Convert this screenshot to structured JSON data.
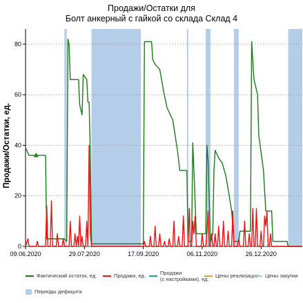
{
  "chart_data": {
    "type": "line",
    "title": "Продажи/Остатки для",
    "subtitle": "Болт анкерный с гайкой со склада Склад 4",
    "ylabel": "Продажи/Остатки, ед.",
    "xlabel": "",
    "ylim": [
      0,
      86
    ],
    "yticks": [
      0,
      20,
      40,
      60,
      80
    ],
    "xlim": [
      "2020-06-09",
      "2021-01-30"
    ],
    "x_tick_labels": [
      "09.06.2020",
      "29.07.2020",
      "17.09.2020",
      "06.11.2020",
      "26.12.2020"
    ],
    "x_tick_dates": [
      "2020-06-09",
      "2020-07-29",
      "2020-09-17",
      "2020-11-06",
      "2020-12-26"
    ],
    "grid": true,
    "legend_position": "bottom",
    "deficit_periods": [
      [
        "2020-07-12",
        "2020-07-14"
      ],
      [
        "2020-08-04",
        "2020-09-15"
      ],
      [
        "2020-10-24",
        "2020-10-25"
      ],
      [
        "2020-11-09",
        "2020-11-13"
      ],
      [
        "2020-12-03",
        "2020-12-07"
      ],
      [
        "2021-01-18",
        "2021-01-30"
      ]
    ],
    "series": [
      {
        "name": "Фактический остаток, ед.",
        "color": "#1a7a1a",
        "points": [
          [
            "2020-06-09",
            39
          ],
          [
            "2020-06-11",
            37
          ],
          [
            "2020-06-12",
            36
          ],
          [
            "2020-06-15",
            36
          ],
          [
            "2020-06-18",
            36
          ],
          [
            "2020-06-26",
            36
          ],
          [
            "2020-06-27",
            3
          ],
          [
            "2020-07-12",
            3
          ],
          [
            "2020-07-14",
            2
          ],
          [
            "2020-07-15",
            82
          ],
          [
            "2020-07-16",
            80
          ],
          [
            "2020-07-17",
            66
          ],
          [
            "2020-07-24",
            66
          ],
          [
            "2020-07-25",
            56
          ],
          [
            "2020-07-27",
            52
          ],
          [
            "2020-07-28",
            68
          ],
          [
            "2020-07-31",
            66
          ],
          [
            "2020-08-01",
            57
          ],
          [
            "2020-08-02",
            57
          ],
          [
            "2020-08-03",
            36
          ],
          [
            "2020-08-04",
            1
          ],
          [
            "2020-09-15",
            1
          ],
          [
            "2020-09-17",
            1
          ],
          [
            "2020-09-18",
            81
          ],
          [
            "2020-09-24",
            81
          ],
          [
            "2020-09-25",
            74
          ],
          [
            "2020-09-27",
            72
          ],
          [
            "2020-10-01",
            70
          ],
          [
            "2020-10-04",
            62
          ],
          [
            "2020-10-07",
            55
          ],
          [
            "2020-10-12",
            50
          ],
          [
            "2020-10-16",
            38
          ],
          [
            "2020-10-18",
            30
          ],
          [
            "2020-10-24",
            30
          ],
          [
            "2020-10-25",
            2
          ],
          [
            "2020-10-28",
            2
          ],
          [
            "2020-10-29",
            41
          ],
          [
            "2020-10-30",
            30
          ],
          [
            "2020-11-01",
            5
          ],
          [
            "2020-11-09",
            5
          ],
          [
            "2020-11-10",
            40
          ],
          [
            "2020-11-11",
            34
          ],
          [
            "2020-11-13",
            2
          ],
          [
            "2020-11-15",
            5
          ],
          [
            "2020-11-16",
            30
          ],
          [
            "2020-11-17",
            38
          ],
          [
            "2020-11-20",
            35
          ],
          [
            "2020-11-23",
            33
          ],
          [
            "2020-11-26",
            28
          ],
          [
            "2020-11-29",
            20
          ],
          [
            "2020-12-01",
            14
          ],
          [
            "2020-12-03",
            2
          ],
          [
            "2020-12-07",
            2
          ],
          [
            "2020-12-08",
            6
          ],
          [
            "2020-12-14",
            6
          ],
          [
            "2020-12-17",
            6
          ],
          [
            "2020-12-18",
            81
          ],
          [
            "2020-12-20",
            66
          ],
          [
            "2020-12-23",
            60
          ],
          [
            "2020-12-24",
            44
          ],
          [
            "2020-12-28",
            30
          ],
          [
            "2020-12-30",
            14
          ],
          [
            "2021-01-01",
            14
          ],
          [
            "2021-01-04",
            14
          ],
          [
            "2021-01-05",
            2
          ],
          [
            "2021-01-17",
            2
          ],
          [
            "2021-01-18",
            0
          ],
          [
            "2021-01-30",
            0
          ]
        ]
      },
      {
        "name": "Продажи, ед.",
        "color": "#ee1111",
        "points": [
          [
            "2020-06-09",
            0
          ],
          [
            "2020-06-11",
            3
          ],
          [
            "2020-06-12",
            0
          ],
          [
            "2020-06-18",
            0
          ],
          [
            "2020-06-19",
            2
          ],
          [
            "2020-06-20",
            0
          ],
          [
            "2020-06-26",
            0
          ],
          [
            "2020-06-27",
            16
          ],
          [
            "2020-06-28",
            0
          ],
          [
            "2020-06-30",
            0
          ],
          [
            "2020-07-01",
            18
          ],
          [
            "2020-07-02",
            0
          ],
          [
            "2020-07-05",
            0
          ],
          [
            "2020-07-06",
            5
          ],
          [
            "2020-07-07",
            0
          ],
          [
            "2020-07-10",
            0
          ],
          [
            "2020-07-11",
            3
          ],
          [
            "2020-07-12",
            0
          ],
          [
            "2020-07-16",
            0
          ],
          [
            "2020-07-17",
            10
          ],
          [
            "2020-07-18",
            0
          ],
          [
            "2020-07-20",
            0
          ],
          [
            "2020-07-21",
            5
          ],
          [
            "2020-07-22",
            0
          ],
          [
            "2020-07-23",
            4
          ],
          [
            "2020-07-24",
            0
          ],
          [
            "2020-07-25",
            12
          ],
          [
            "2020-07-26",
            0
          ],
          [
            "2020-07-27",
            4
          ],
          [
            "2020-07-28",
            0
          ],
          [
            "2020-07-30",
            0
          ],
          [
            "2020-07-31",
            10
          ],
          [
            "2020-08-01",
            0
          ],
          [
            "2020-08-02",
            40
          ],
          [
            "2020-08-03",
            5
          ],
          [
            "2020-08-04",
            0
          ],
          [
            "2020-09-17",
            0
          ],
          [
            "2020-09-18",
            2
          ],
          [
            "2020-09-19",
            0
          ],
          [
            "2020-09-22",
            0
          ],
          [
            "2020-09-23",
            4
          ],
          [
            "2020-09-24",
            0
          ],
          [
            "2020-09-26",
            0
          ],
          [
            "2020-09-27",
            8
          ],
          [
            "2020-09-28",
            0
          ],
          [
            "2020-09-30",
            0
          ],
          [
            "2020-10-01",
            5
          ],
          [
            "2020-10-02",
            0
          ],
          [
            "2020-10-04",
            0
          ],
          [
            "2020-10-05",
            2
          ],
          [
            "2020-10-06",
            0
          ],
          [
            "2020-10-08",
            0
          ],
          [
            "2020-10-09",
            3
          ],
          [
            "2020-10-10",
            0
          ],
          [
            "2020-10-12",
            0
          ],
          [
            "2020-10-13",
            10
          ],
          [
            "2020-10-14",
            0
          ],
          [
            "2020-10-16",
            0
          ],
          [
            "2020-10-17",
            4
          ],
          [
            "2020-10-18",
            0
          ],
          [
            "2020-10-20",
            0
          ],
          [
            "2020-10-21",
            12
          ],
          [
            "2020-10-22",
            0
          ],
          [
            "2020-10-25",
            0
          ],
          [
            "2020-10-26",
            15
          ],
          [
            "2020-10-27",
            0
          ],
          [
            "2020-10-28",
            0
          ],
          [
            "2020-10-29",
            10
          ],
          [
            "2020-10-30",
            5
          ],
          [
            "2020-10-31",
            12
          ],
          [
            "2020-11-01",
            0
          ],
          [
            "2020-11-05",
            0
          ],
          [
            "2020-11-06",
            5
          ],
          [
            "2020-11-07",
            0
          ],
          [
            "2020-11-09",
            0
          ],
          [
            "2020-11-10",
            6
          ],
          [
            "2020-11-11",
            14
          ],
          [
            "2020-11-12",
            0
          ],
          [
            "2020-11-13",
            0
          ],
          [
            "2020-11-14",
            5
          ],
          [
            "2020-11-15",
            0
          ],
          [
            "2020-11-16",
            0
          ],
          [
            "2020-11-17",
            5
          ],
          [
            "2020-11-18",
            0
          ],
          [
            "2020-11-19",
            0
          ],
          [
            "2020-11-20",
            8
          ],
          [
            "2020-11-21",
            0
          ],
          [
            "2020-11-23",
            0
          ],
          [
            "2020-11-24",
            10
          ],
          [
            "2020-11-25",
            0
          ],
          [
            "2020-11-27",
            0
          ],
          [
            "2020-11-28",
            6
          ],
          [
            "2020-11-29",
            0
          ],
          [
            "2020-12-01",
            0
          ],
          [
            "2020-12-02",
            14
          ],
          [
            "2020-12-03",
            0
          ],
          [
            "2020-12-06",
            0
          ],
          [
            "2020-12-07",
            3
          ],
          [
            "2020-12-08",
            0
          ],
          [
            "2020-12-11",
            0
          ],
          [
            "2020-12-12",
            10
          ],
          [
            "2020-12-13",
            0
          ],
          [
            "2020-12-15",
            0
          ],
          [
            "2020-12-16",
            5
          ],
          [
            "2020-12-17",
            0
          ],
          [
            "2020-12-18",
            0
          ],
          [
            "2020-12-19",
            15
          ],
          [
            "2020-12-20",
            0
          ],
          [
            "2020-12-21",
            0
          ],
          [
            "2020-12-22",
            15
          ],
          [
            "2020-12-23",
            0
          ],
          [
            "2020-12-25",
            0
          ],
          [
            "2020-12-26",
            6
          ],
          [
            "2020-12-27",
            0
          ],
          [
            "2020-12-28",
            0
          ],
          [
            "2020-12-29",
            12
          ],
          [
            "2020-12-30",
            8
          ],
          [
            "2020-12-31",
            14
          ],
          [
            "2021-01-01",
            0
          ],
          [
            "2021-01-02",
            0
          ],
          [
            "2021-01-03",
            5
          ],
          [
            "2021-01-04",
            0
          ],
          [
            "2021-01-17",
            0
          ],
          [
            "2021-01-30",
            0
          ]
        ]
      },
      {
        "name": "Продажи\n(с настройками), ед.",
        "color": "#17a2a2",
        "points": [
          [
            "2020-06-09",
            0
          ],
          [
            "2021-01-30",
            0
          ]
        ]
      },
      {
        "name": "Цены реализации",
        "color": "#f0a030",
        "points": [
          [
            "2020-06-09",
            0
          ],
          [
            "2021-01-30",
            0
          ]
        ]
      },
      {
        "name": "Цены закупки",
        "color": "#a8cce8",
        "points": []
      }
    ],
    "markers": [
      {
        "series": "Фактический остаток, ед.",
        "x": "2020-06-18",
        "y": 36,
        "symbol": "triangle"
      }
    ]
  },
  "legend": {
    "items": [
      {
        "label": "Фактический остаток, ед.",
        "color": "#1a7a1a",
        "kind": "line"
      },
      {
        "label": "Продажи, ед.",
        "color": "#ee1111",
        "kind": "line"
      },
      {
        "label": "Продажи\n(с настройками), ед.",
        "color": "#17a2a2",
        "kind": "line"
      },
      {
        "label": "Цены реализации",
        "color": "#f0a030",
        "kind": "line"
      },
      {
        "label": "Цены закупки",
        "color": "#a8cce8",
        "kind": "line"
      },
      {
        "label": "Периоды дефицита",
        "color": "#b4cde8",
        "kind": "box"
      }
    ]
  },
  "colors": {
    "deficit_fill": "#b4cde8",
    "grid": "#a0a0a0",
    "axis": "#000000"
  }
}
